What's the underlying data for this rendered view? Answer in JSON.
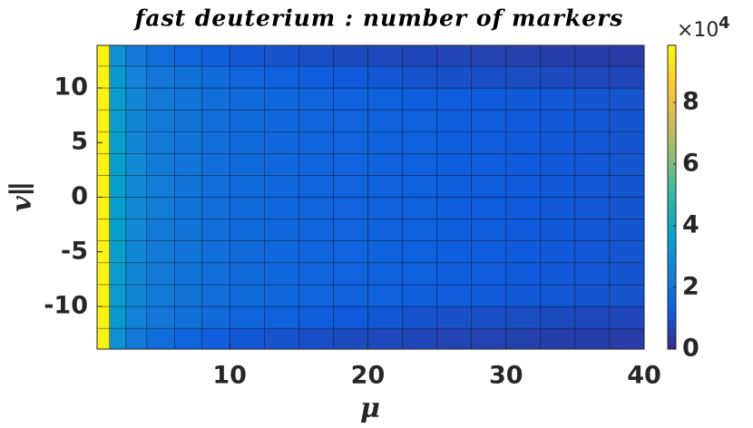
{
  "chart_data": {
    "type": "heatmap",
    "title": "fast deuterium : number of markers",
    "x_label": "μ",
    "y_label": "v∥",
    "x_edges": [
      0.4,
      1.3,
      2.5,
      4,
      6,
      8,
      10,
      12.5,
      15,
      17.5,
      20,
      22.5,
      25,
      27.5,
      30,
      32.5,
      35,
      37.5,
      40
    ],
    "y_edges": [
      -13.9,
      -12,
      -10,
      -8,
      -6,
      -4,
      -2,
      0,
      2,
      4,
      6,
      8,
      10,
      12,
      13.9
    ],
    "values": [
      [
        9.6,
        3.0,
        2.2,
        1.8,
        1.5,
        1.3,
        1.1,
        1.0,
        0.9,
        0.8,
        0.75,
        0.7,
        0.65,
        0.6,
        0.55,
        0.5,
        0.5,
        0.45
      ],
      [
        9.6,
        3.3,
        2.5,
        2.1,
        1.9,
        1.7,
        1.5,
        1.4,
        1.3,
        1.2,
        1.1,
        1.0,
        0.95,
        0.9,
        0.85,
        0.8,
        0.75,
        0.7
      ],
      [
        9.6,
        3.4,
        2.6,
        2.2,
        2.0,
        1.8,
        1.7,
        1.6,
        1.5,
        1.4,
        1.35,
        1.3,
        1.25,
        1.2,
        1.15,
        1.1,
        1.05,
        1.0
      ],
      [
        9.6,
        3.4,
        2.6,
        2.2,
        2.0,
        1.8,
        1.7,
        1.6,
        1.5,
        1.45,
        1.4,
        1.35,
        1.3,
        1.25,
        1.2,
        1.15,
        1.1,
        1.05
      ],
      [
        9.6,
        3.5,
        2.6,
        2.2,
        2.0,
        1.8,
        1.7,
        1.6,
        1.5,
        1.45,
        1.4,
        1.35,
        1.3,
        1.25,
        1.2,
        1.15,
        1.1,
        1.05
      ],
      [
        9.6,
        3.5,
        2.7,
        2.2,
        2.0,
        1.8,
        1.7,
        1.6,
        1.5,
        1.45,
        1.4,
        1.35,
        1.3,
        1.25,
        1.2,
        1.15,
        1.1,
        1.05
      ],
      [
        9.6,
        3.5,
        2.7,
        2.3,
        2.0,
        1.8,
        1.7,
        1.6,
        1.5,
        1.45,
        1.4,
        1.35,
        1.3,
        1.25,
        1.2,
        1.15,
        1.1,
        1.05
      ],
      [
        9.6,
        3.5,
        2.7,
        2.3,
        2.0,
        1.8,
        1.7,
        1.6,
        1.5,
        1.45,
        1.4,
        1.35,
        1.3,
        1.25,
        1.2,
        1.15,
        1.1,
        1.05
      ],
      [
        9.6,
        3.5,
        2.7,
        2.2,
        2.0,
        1.8,
        1.7,
        1.6,
        1.5,
        1.45,
        1.4,
        1.35,
        1.3,
        1.25,
        1.2,
        1.15,
        1.1,
        1.05
      ],
      [
        9.6,
        3.5,
        2.6,
        2.2,
        2.0,
        1.8,
        1.7,
        1.6,
        1.5,
        1.45,
        1.4,
        1.35,
        1.3,
        1.25,
        1.2,
        1.15,
        1.1,
        1.05
      ],
      [
        9.6,
        3.4,
        2.6,
        2.2,
        2.0,
        1.8,
        1.7,
        1.6,
        1.5,
        1.45,
        1.4,
        1.35,
        1.3,
        1.25,
        1.2,
        1.15,
        1.1,
        1.05
      ],
      [
        9.6,
        3.4,
        2.6,
        2.2,
        2.0,
        1.8,
        1.7,
        1.6,
        1.5,
        1.4,
        1.35,
        1.3,
        1.25,
        1.2,
        1.15,
        1.1,
        1.05,
        1.0
      ],
      [
        9.6,
        3.3,
        2.5,
        2.1,
        1.9,
        1.7,
        1.5,
        1.4,
        1.3,
        1.2,
        1.1,
        1.0,
        0.95,
        0.9,
        0.85,
        0.8,
        0.75,
        0.7
      ],
      [
        9.6,
        3.0,
        2.2,
        1.8,
        1.5,
        1.3,
        1.1,
        1.0,
        0.9,
        0.8,
        0.75,
        0.7,
        0.65,
        0.6,
        0.55,
        0.5,
        0.5,
        0.45
      ]
    ],
    "xlim": [
      0.4,
      40
    ],
    "ylim": [
      -13.9,
      13.9
    ],
    "xticks": [
      10,
      20,
      30,
      40
    ],
    "yticks": [
      -10,
      -5,
      0,
      5,
      10
    ],
    "clim": [
      0,
      9.85
    ],
    "cticks": [
      0,
      2,
      4,
      6,
      8
    ],
    "colorbar_multiplier": "×10",
    "colorbar_exponent": 4,
    "colormap": [
      "#352a87",
      "#0f5cdd",
      "#1481d6",
      "#06a4ca",
      "#2eb7a4",
      "#87bf77",
      "#d1bb59",
      "#fec832",
      "#f9fb0e"
    ]
  }
}
